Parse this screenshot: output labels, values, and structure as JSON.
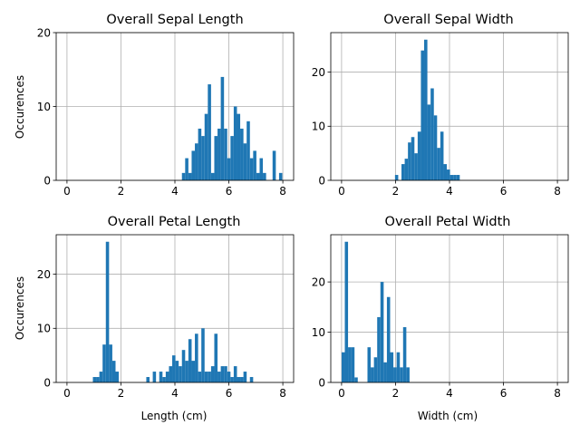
{
  "figure": {
    "background": "#ffffff",
    "bar_color": "#1f77b4",
    "grid": true
  },
  "chart_data": [
    {
      "type": "bar",
      "title": "Overall Sepal Length",
      "xlabel": "",
      "ylabel": "Occurences",
      "xlim": [
        -0.4,
        8.4
      ],
      "ylim": [
        0,
        20
      ],
      "xticks": [
        0,
        2,
        4,
        6,
        8
      ],
      "yticks": [
        0,
        10,
        20
      ],
      "bin_width": 0.12,
      "x": [
        4.32,
        4.44,
        4.56,
        4.68,
        4.8,
        4.92,
        5.04,
        5.16,
        5.28,
        5.4,
        5.52,
        5.64,
        5.76,
        5.88,
        6.0,
        6.12,
        6.24,
        6.36,
        6.48,
        6.6,
        6.72,
        6.84,
        6.96,
        7.08,
        7.2,
        7.32,
        7.68,
        7.92
      ],
      "values": [
        1,
        3,
        1,
        4,
        5,
        7,
        6,
        9,
        13,
        1,
        6,
        7,
        14,
        7,
        3,
        6,
        10,
        9,
        7,
        5,
        8,
        3,
        4,
        1,
        3,
        1,
        4,
        1
      ]
    },
    {
      "type": "bar",
      "title": "Overall Sepal Width",
      "xlabel": "",
      "ylabel": "",
      "xlim": [
        -0.4,
        8.4
      ],
      "ylim": [
        0,
        27.3
      ],
      "xticks": [
        0,
        2,
        4,
        6,
        8
      ],
      "yticks": [
        0,
        10,
        20
      ],
      "bin_width": 0.12,
      "x": [
        2.04,
        2.16,
        2.28,
        2.4,
        2.52,
        2.64,
        2.76,
        2.88,
        3.0,
        3.12,
        3.24,
        3.36,
        3.48,
        3.6,
        3.72,
        3.84,
        3.96,
        4.08,
        4.2,
        4.32
      ],
      "values": [
        1,
        0,
        3,
        4,
        7,
        8,
        5,
        9,
        24,
        26,
        14,
        17,
        12,
        6,
        9,
        3,
        2,
        1,
        1,
        1
      ]
    },
    {
      "type": "bar",
      "title": "Overall Petal Length",
      "xlabel": "Length (cm)",
      "ylabel": "Occurences",
      "xlim": [
        -0.4,
        8.4
      ],
      "ylim": [
        0,
        27.3
      ],
      "xticks": [
        0,
        2,
        4,
        6,
        8
      ],
      "yticks": [
        0,
        10,
        20
      ],
      "bin_width": 0.12,
      "x": [
        1.02,
        1.14,
        1.26,
        1.38,
        1.5,
        1.62,
        1.74,
        1.86,
        3.0,
        3.24,
        3.48,
        3.6,
        3.72,
        3.84,
        3.96,
        4.08,
        4.2,
        4.32,
        4.44,
        4.56,
        4.68,
        4.8,
        4.92,
        5.04,
        5.16,
        5.28,
        5.4,
        5.52,
        5.64,
        5.76,
        5.88,
        6.0,
        6.12,
        6.24,
        6.36,
        6.48,
        6.6,
        6.84
      ],
      "values": [
        1,
        1,
        2,
        7,
        26,
        7,
        4,
        2,
        1,
        2,
        2,
        1,
        2,
        3,
        5,
        4,
        3,
        6,
        4,
        8,
        4,
        9,
        2,
        10,
        2,
        2,
        3,
        9,
        2,
        3,
        3,
        2,
        1,
        3,
        1,
        1,
        2,
        1
      ]
    },
    {
      "type": "bar",
      "title": "Overall Petal Width",
      "xlabel": "Width (cm)",
      "ylabel": "",
      "xlim": [
        -0.4,
        8.4
      ],
      "ylim": [
        0,
        29.4
      ],
      "xticks": [
        0,
        2,
        4,
        6,
        8
      ],
      "yticks": [
        0,
        10,
        20
      ],
      "bin_width": 0.12,
      "x": [
        0.06,
        0.18,
        0.3,
        0.42,
        0.54,
        0.66,
        0.9,
        1.02,
        1.14,
        1.26,
        1.38,
        1.5,
        1.62,
        1.74,
        1.86,
        1.98,
        2.1,
        2.22,
        2.34,
        2.46
      ],
      "values": [
        6,
        28,
        7,
        7,
        1,
        0,
        0,
        7,
        3,
        5,
        13,
        20,
        4,
        17,
        6,
        3,
        6,
        3,
        11,
        3
      ]
    }
  ]
}
